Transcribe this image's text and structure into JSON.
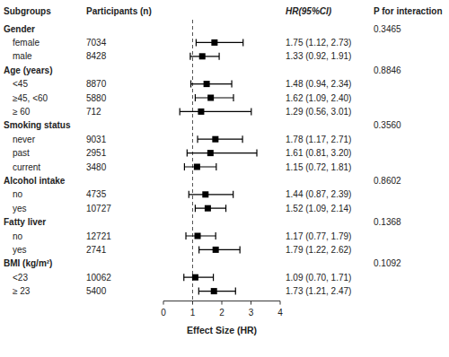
{
  "chart_data": {
    "type": "forest",
    "headers": [
      "Subgroups",
      "Participants (n)",
      "HR(95%CI)",
      "P for interaction"
    ],
    "xlabel": "Effect Size (HR)",
    "xlim": [
      0,
      4
    ],
    "xticks": [
      0,
      1,
      2,
      3,
      4
    ],
    "reference_line": 1.0,
    "color": "black",
    "groups": [
      {
        "name": "Gender",
        "p": "0.3465",
        "categories": [
          "female",
          "male"
        ],
        "n": [
          7034,
          8428
        ],
        "values": [
          1.75,
          1.33
        ],
        "ci_lo": [
          1.12,
          0.92
        ],
        "ci_hi": [
          2.73,
          1.91
        ],
        "value_labels": [
          "1.75 (1.12, 2.73)",
          "1.33 (0.92, 1.91)"
        ]
      },
      {
        "name": "Age (years)",
        "p": "0.8846",
        "categories": [
          "<45",
          "≥45, <60",
          "≥ 60"
        ],
        "n": [
          8870,
          5880,
          712
        ],
        "values": [
          1.48,
          1.62,
          1.29
        ],
        "ci_lo": [
          0.94,
          1.09,
          0.56
        ],
        "ci_hi": [
          2.34,
          2.4,
          3.01
        ],
        "value_labels": [
          "1.48 (0.94, 2.34)",
          "1.62 (1.09, 2.40)",
          "1.29 (0.56, 3.01)"
        ]
      },
      {
        "name": "Smoking status",
        "p": "0.3560",
        "categories": [
          "never",
          "past",
          "current"
        ],
        "n": [
          9031,
          2951,
          3480
        ],
        "values": [
          1.78,
          1.61,
          1.15
        ],
        "ci_lo": [
          1.17,
          0.81,
          0.72
        ],
        "ci_hi": [
          2.71,
          3.2,
          1.81
        ],
        "value_labels": [
          "1.78 (1.17, 2.71)",
          "1.61 (0.81, 3.20)",
          "1.15 (0.72, 1.81)"
        ]
      },
      {
        "name": "Alcohol intake",
        "p": "0.8602",
        "categories": [
          "no",
          "yes"
        ],
        "n": [
          4735,
          10727
        ],
        "values": [
          1.44,
          1.52
        ],
        "ci_lo": [
          0.87,
          1.09
        ],
        "ci_hi": [
          2.39,
          2.14
        ],
        "value_labels": [
          "1.44 (0.87, 2.39)",
          "1.52 (1.09, 2.14)"
        ]
      },
      {
        "name": "Fatty liver",
        "p": "0.1368",
        "categories": [
          "no",
          "yes"
        ],
        "n": [
          12721,
          2741
        ],
        "values": [
          1.17,
          1.79
        ],
        "ci_lo": [
          0.77,
          1.22
        ],
        "ci_hi": [
          1.79,
          2.62
        ],
        "value_labels": [
          "1.17 (0.77, 1.79)",
          "1.79 (1.22, 2.62)"
        ]
      },
      {
        "name": "BMI (kg/m²)",
        "p": "0.1092",
        "categories": [
          "<23",
          "≥ 23"
        ],
        "n": [
          10062,
          5400
        ],
        "values": [
          1.09,
          1.73
        ],
        "ci_lo": [
          0.7,
          1.21
        ],
        "ci_hi": [
          1.71,
          2.47
        ],
        "value_labels": [
          "1.09 (0.70, 1.71)",
          "1.73 (1.21, 2.47)"
        ]
      }
    ]
  }
}
